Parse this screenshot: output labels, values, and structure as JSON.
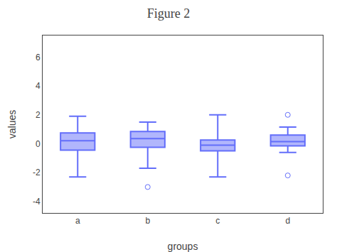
{
  "chart_data": {
    "type": "box",
    "title": "Figure 2",
    "xlabel": "groups",
    "ylabel": "values",
    "categories": [
      "a",
      "b",
      "c",
      "d"
    ],
    "boxes": [
      {
        "q1": -0.45,
        "median": 0.2,
        "q3": 0.75,
        "whislo": -2.3,
        "whishi": 1.9,
        "fliers": []
      },
      {
        "q1": -0.25,
        "median": 0.35,
        "q3": 0.85,
        "whislo": -1.7,
        "whishi": 1.5,
        "fliers": [
          -3.0
        ]
      },
      {
        "q1": -0.5,
        "median": -0.1,
        "q3": 0.25,
        "whislo": -2.3,
        "whishi": 2.0,
        "fliers": []
      },
      {
        "q1": -0.15,
        "median": 0.15,
        "q3": 0.6,
        "whislo": -0.6,
        "whishi": 1.15,
        "fliers": [
          2.0,
          -2.2
        ]
      }
    ],
    "ylim": [
      -4.8,
      7.5
    ],
    "yticks": [
      -4,
      -2,
      0,
      2,
      4,
      6
    ],
    "grid": false
  }
}
